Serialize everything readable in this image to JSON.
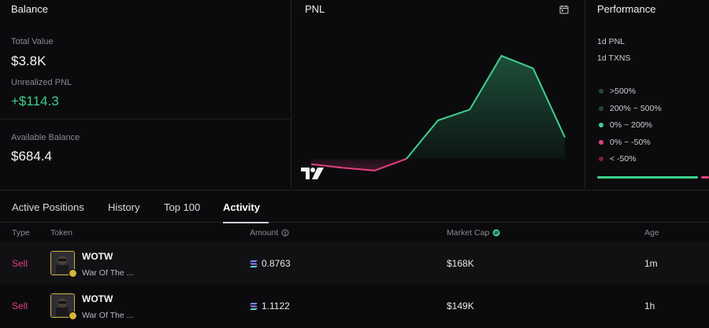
{
  "balance": {
    "title": "Balance",
    "total_value_label": "Total Value",
    "total_value": "$3.8K",
    "unrealized_pnl_label": "Unrealized PNL",
    "unrealized_pnl": "+$114.3",
    "available_balance_label": "Available Balance",
    "available_balance": "$684.4"
  },
  "pnl": {
    "title": "PNL",
    "calendar_icon": "calendar-icon",
    "watermark_icon": "tradingview-logo",
    "chart_data": {
      "type": "line",
      "series_colors": {
        "negative": "#e0407a",
        "positive": "#3ecf8e"
      },
      "values": [
        -0.6,
        -1.0,
        -1.3,
        0.0,
        4.3,
        5.5,
        11.5,
        10.1,
        2.4
      ]
    }
  },
  "performance": {
    "title": "Performance",
    "rows": [
      "1d PNL",
      "1d TXNS"
    ],
    "legend": [
      {
        "label": ">500%",
        "color": "#1f4a38"
      },
      {
        "label": "200% ~ 500%",
        "color": "#1f4a38"
      },
      {
        "label": "0% ~ 200%",
        "color": "#3ecf8e"
      },
      {
        "label": "0% ~ -50%",
        "color": "#e0407a"
      },
      {
        "label": "< -50%",
        "color": "#7a1f3d"
      }
    ]
  },
  "tabs": [
    {
      "label": "Active Positions"
    },
    {
      "label": "History"
    },
    {
      "label": "Top 100"
    },
    {
      "label": "Activity"
    }
  ],
  "table": {
    "headers": {
      "type": "Type",
      "token": "Token",
      "amount": "Amount",
      "market_cap": "Market Cap",
      "age": "Age"
    },
    "rows": [
      {
        "type": "Sell",
        "token_symbol": "WOTW",
        "token_name": "War Of The ...",
        "amount": "0.8763",
        "market_cap": "$168K",
        "age": "1m"
      },
      {
        "type": "Sell",
        "token_symbol": "WOTW",
        "token_name": "War Of The ...",
        "amount": "1.1122",
        "market_cap": "$149K",
        "age": "1h"
      }
    ]
  }
}
